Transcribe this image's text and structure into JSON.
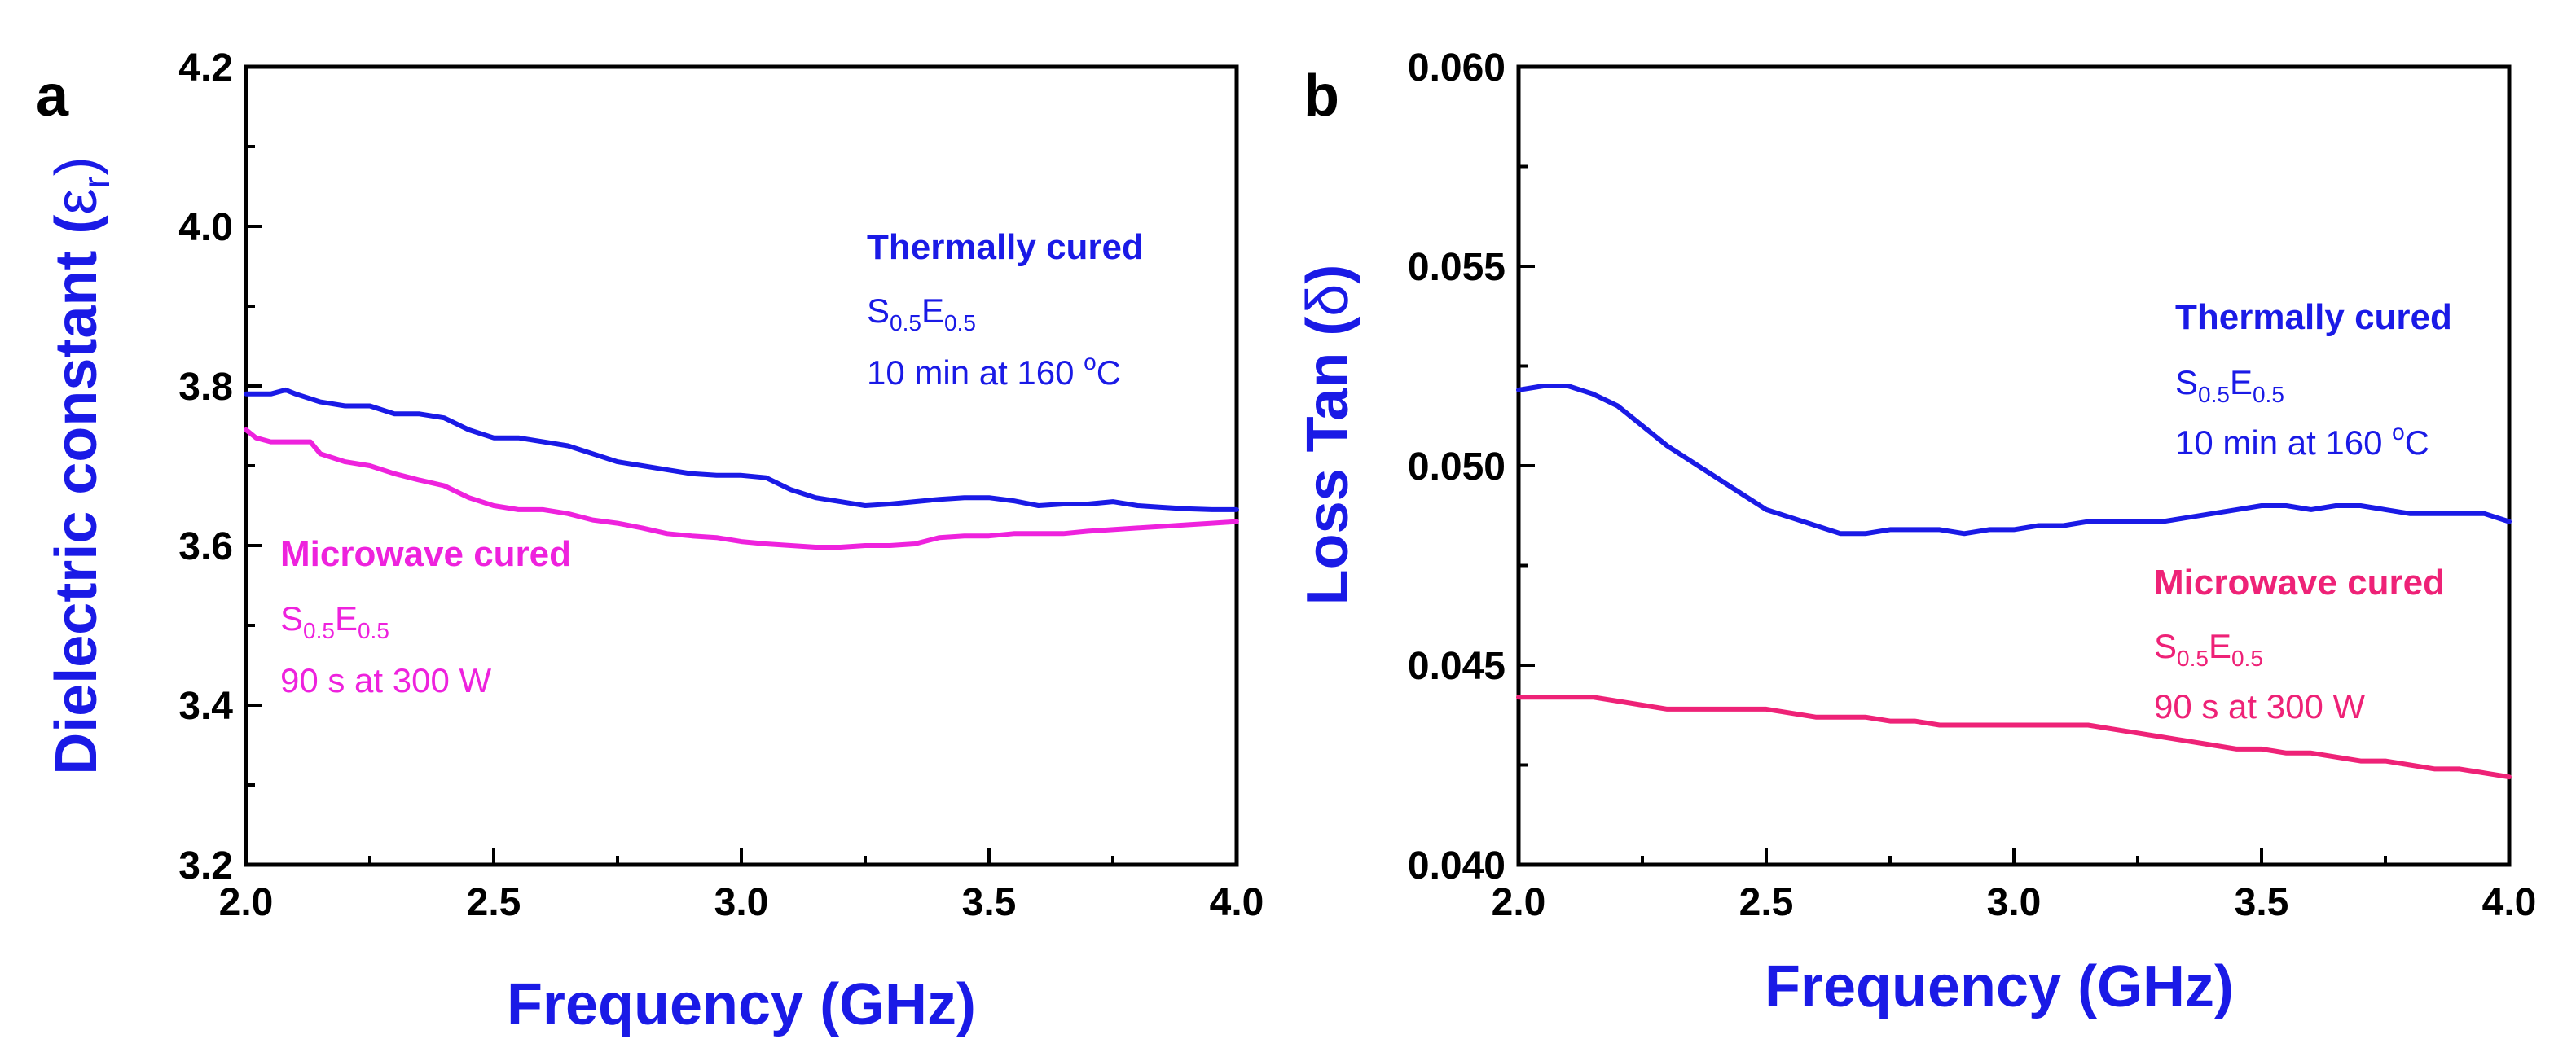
{
  "colors": {
    "thermal": "#1a1ae6",
    "microwave_a": "#ee22dd",
    "microwave_b": "#ee2277",
    "axis_title": "#1a1ae6"
  },
  "chart_data": [
    {
      "type": "line",
      "panel": "a",
      "xlabel": "Frequency (GHz)",
      "ylabel": {
        "main": "Dielectric constant (",
        "symbol": "ε",
        "sub": "r",
        "close": ")"
      },
      "xlim": [
        2.0,
        4.0
      ],
      "ylim": [
        3.2,
        4.2
      ],
      "xticks": [
        "2.0",
        "2.5",
        "3.0",
        "3.5",
        "4.0"
      ],
      "yticks": [
        "3.2",
        "3.4",
        "3.6",
        "3.8",
        "4.0",
        "4.2"
      ],
      "grid": false,
      "series": [
        {
          "key": "thermal",
          "color_key": "thermal",
          "x": [
            2.0,
            2.05,
            2.08,
            2.1,
            2.15,
            2.2,
            2.25,
            2.3,
            2.35,
            2.4,
            2.45,
            2.5,
            2.55,
            2.6,
            2.65,
            2.7,
            2.75,
            2.8,
            2.85,
            2.9,
            2.95,
            3.0,
            3.05,
            3.1,
            3.15,
            3.2,
            3.25,
            3.3,
            3.35,
            3.4,
            3.45,
            3.5,
            3.55,
            3.6,
            3.65,
            3.7,
            3.75,
            3.8,
            3.85,
            3.9,
            3.95,
            4.0
          ],
          "y": [
            3.79,
            3.79,
            3.795,
            3.79,
            3.78,
            3.775,
            3.775,
            3.765,
            3.765,
            3.76,
            3.745,
            3.735,
            3.735,
            3.73,
            3.725,
            3.715,
            3.705,
            3.7,
            3.695,
            3.69,
            3.688,
            3.688,
            3.685,
            3.67,
            3.66,
            3.655,
            3.65,
            3.652,
            3.655,
            3.658,
            3.66,
            3.66,
            3.656,
            3.65,
            3.652,
            3.652,
            3.655,
            3.65,
            3.648,
            3.646,
            3.645,
            3.645
          ]
        },
        {
          "key": "microwave",
          "color_key": "microwave_a",
          "x": [
            2.0,
            2.02,
            2.05,
            2.1,
            2.13,
            2.15,
            2.2,
            2.25,
            2.3,
            2.35,
            2.4,
            2.45,
            2.5,
            2.55,
            2.6,
            2.65,
            2.7,
            2.75,
            2.8,
            2.85,
            2.9,
            2.95,
            3.0,
            3.05,
            3.1,
            3.15,
            3.2,
            3.25,
            3.3,
            3.35,
            3.4,
            3.45,
            3.5,
            3.55,
            3.6,
            3.65,
            3.7,
            3.75,
            3.8,
            3.85,
            3.9,
            3.95,
            4.0
          ],
          "y": [
            3.745,
            3.735,
            3.73,
            3.73,
            3.73,
            3.715,
            3.705,
            3.7,
            3.69,
            3.682,
            3.675,
            3.66,
            3.65,
            3.645,
            3.645,
            3.64,
            3.632,
            3.628,
            3.622,
            3.615,
            3.612,
            3.61,
            3.605,
            3.602,
            3.6,
            3.598,
            3.598,
            3.6,
            3.6,
            3.602,
            3.61,
            3.612,
            3.612,
            3.615,
            3.615,
            3.615,
            3.618,
            3.62,
            3.622,
            3.624,
            3.626,
            3.628,
            3.63
          ]
        }
      ],
      "annotations": [
        {
          "color_key": "thermal",
          "title": "Thermally cured",
          "formula": {
            "s": "S",
            "s_sub": "0.5",
            "e": "E",
            "e_sub": "0.5"
          },
          "condition": {
            "pre": "10 min at 160 ",
            "sup": "o",
            "post": "C"
          }
        },
        {
          "color_key": "microwave_a",
          "title": "Microwave cured",
          "formula": {
            "s": "S",
            "s_sub": "0.5",
            "e": "E",
            "e_sub": "0.5"
          },
          "condition": {
            "pre": "90 s at 300 W",
            "sup": "",
            "post": ""
          }
        }
      ]
    },
    {
      "type": "line",
      "panel": "b",
      "xlabel": "Frequency (GHz)",
      "ylabel": {
        "main": "Loss Tan (",
        "symbol": "δ",
        "sub": "",
        "close": ")"
      },
      "xlim": [
        2.0,
        4.0
      ],
      "ylim": [
        0.04,
        0.06
      ],
      "xticks": [
        "2.0",
        "2.5",
        "3.0",
        "3.5",
        "4.0"
      ],
      "yticks": [
        "0.040",
        "0.045",
        "0.050",
        "0.055",
        "0.060"
      ],
      "grid": false,
      "series": [
        {
          "key": "thermal",
          "color_key": "thermal",
          "x": [
            2.0,
            2.05,
            2.1,
            2.15,
            2.2,
            2.25,
            2.3,
            2.35,
            2.4,
            2.45,
            2.5,
            2.55,
            2.6,
            2.65,
            2.7,
            2.75,
            2.8,
            2.85,
            2.9,
            2.95,
            3.0,
            3.05,
            3.1,
            3.15,
            3.2,
            3.25,
            3.3,
            3.35,
            3.4,
            3.45,
            3.5,
            3.55,
            3.6,
            3.65,
            3.7,
            3.75,
            3.8,
            3.85,
            3.9,
            3.95,
            4.0
          ],
          "y": [
            0.0519,
            0.052,
            0.052,
            0.0518,
            0.0515,
            0.051,
            0.0505,
            0.0501,
            0.0497,
            0.0493,
            0.0489,
            0.0487,
            0.0485,
            0.0483,
            0.0483,
            0.0484,
            0.0484,
            0.0484,
            0.0483,
            0.0484,
            0.0484,
            0.0485,
            0.0485,
            0.0486,
            0.0486,
            0.0486,
            0.0486,
            0.0487,
            0.0488,
            0.0489,
            0.049,
            0.049,
            0.0489,
            0.049,
            0.049,
            0.0489,
            0.0488,
            0.0488,
            0.0488,
            0.0488,
            0.0486
          ]
        },
        {
          "key": "microwave",
          "color_key": "microwave_b",
          "x": [
            2.0,
            2.05,
            2.1,
            2.15,
            2.2,
            2.25,
            2.3,
            2.35,
            2.4,
            2.45,
            2.5,
            2.55,
            2.6,
            2.65,
            2.7,
            2.75,
            2.8,
            2.85,
            2.9,
            2.95,
            3.0,
            3.05,
            3.1,
            3.15,
            3.2,
            3.25,
            3.3,
            3.35,
            3.4,
            3.45,
            3.5,
            3.55,
            3.6,
            3.65,
            3.7,
            3.75,
            3.8,
            3.85,
            3.9,
            3.95,
            4.0
          ],
          "y": [
            0.0442,
            0.0442,
            0.0442,
            0.0442,
            0.0441,
            0.044,
            0.0439,
            0.0439,
            0.0439,
            0.0439,
            0.0439,
            0.0438,
            0.0437,
            0.0437,
            0.0437,
            0.0436,
            0.0436,
            0.0435,
            0.0435,
            0.0435,
            0.0435,
            0.0435,
            0.0435,
            0.0435,
            0.0434,
            0.0433,
            0.0432,
            0.0431,
            0.043,
            0.0429,
            0.0429,
            0.0428,
            0.0428,
            0.0427,
            0.0426,
            0.0426,
            0.0425,
            0.0424,
            0.0424,
            0.0423,
            0.0422
          ]
        }
      ],
      "annotations": [
        {
          "color_key": "thermal",
          "title": "Thermally cured",
          "formula": {
            "s": "S",
            "s_sub": "0.5",
            "e": "E",
            "e_sub": "0.5"
          },
          "condition": {
            "pre": "10 min at 160 ",
            "sup": "o",
            "post": "C"
          }
        },
        {
          "color_key": "microwave_b",
          "title": "Microwave cured",
          "formula": {
            "s": "S",
            "s_sub": "0.5",
            "e": "E",
            "e_sub": "0.5"
          },
          "condition": {
            "pre": "90 s at 300 W",
            "sup": "",
            "post": ""
          }
        }
      ]
    }
  ]
}
